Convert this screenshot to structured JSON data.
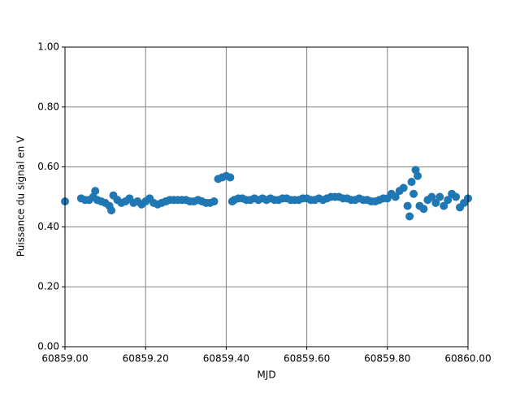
{
  "chart_data": {
    "type": "scatter",
    "xlabel": "MJD",
    "ylabel": "Puissance du signal en V",
    "color": "#1f77b4",
    "grid": true,
    "xlim": [
      60859.0,
      60860.0
    ],
    "xticks": [
      {
        "value": 60859.0,
        "label": "60859.00"
      },
      {
        "value": 60859.2,
        "label": "60859.20"
      },
      {
        "value": 60859.4,
        "label": "60859.40"
      },
      {
        "value": 60859.6,
        "label": "60859.60"
      },
      {
        "value": 60859.8,
        "label": "60859.80"
      },
      {
        "value": 60860.0,
        "label": "60860.00"
      }
    ],
    "ylim": [
      0,
      1
    ],
    "yticks": [
      {
        "value": 0,
        "label": "0.00"
      },
      {
        "value": 0.2,
        "label": "0.20"
      },
      {
        "value": 0.4,
        "label": "0.40"
      },
      {
        "value": 0.6,
        "label": "0.60"
      },
      {
        "value": 0.8,
        "label": "0.80"
      },
      {
        "value": 1,
        "label": "1.00"
      }
    ],
    "x": [
      60859.0,
      60859.04,
      60859.05,
      60859.06,
      60859.07,
      60859.075,
      60859.08,
      60859.09,
      60859.1,
      60859.11,
      60859.115,
      60859.12,
      60859.13,
      60859.14,
      60859.15,
      60859.16,
      60859.17,
      60859.18,
      60859.19,
      60859.2,
      60859.21,
      60859.22,
      60859.23,
      60859.24,
      60859.25,
      60859.26,
      60859.27,
      60859.28,
      60859.29,
      60859.3,
      60859.31,
      60859.32,
      60859.33,
      60859.34,
      60859.35,
      60859.36,
      60859.37,
      60859.38,
      60859.39,
      60859.4,
      60859.41,
      60859.415,
      60859.42,
      60859.43,
      60859.44,
      60859.45,
      60859.46,
      60859.47,
      60859.48,
      60859.49,
      60859.5,
      60859.51,
      60859.52,
      60859.53,
      60859.54,
      60859.55,
      60859.56,
      60859.57,
      60859.58,
      60859.59,
      60859.6,
      60859.61,
      60859.62,
      60859.63,
      60859.64,
      60859.65,
      60859.66,
      60859.67,
      60859.68,
      60859.69,
      60859.7,
      60859.71,
      60859.72,
      60859.73,
      60859.74,
      60859.75,
      60859.76,
      60859.77,
      60859.78,
      60859.79,
      60859.8,
      60859.81,
      60859.82,
      60859.83,
      60859.84,
      60859.85,
      60859.855,
      60859.86,
      60859.865,
      60859.87,
      60859.875,
      60859.88,
      60859.89,
      60859.9,
      60859.91,
      60859.92,
      60859.93,
      60859.94,
      60859.95,
      60859.96,
      60859.97,
      60859.98,
      60859.99,
      60860.0
    ],
    "values": [
      0.485,
      0.495,
      0.49,
      0.49,
      0.5,
      0.52,
      0.49,
      0.485,
      0.48,
      0.47,
      0.455,
      0.505,
      0.49,
      0.48,
      0.485,
      0.495,
      0.48,
      0.485,
      0.475,
      0.485,
      0.495,
      0.48,
      0.475,
      0.48,
      0.485,
      0.49,
      0.49,
      0.49,
      0.49,
      0.49,
      0.485,
      0.485,
      0.49,
      0.485,
      0.48,
      0.48,
      0.485,
      0.56,
      0.565,
      0.57,
      0.565,
      0.485,
      0.49,
      0.495,
      0.495,
      0.49,
      0.49,
      0.495,
      0.49,
      0.495,
      0.49,
      0.495,
      0.49,
      0.49,
      0.495,
      0.495,
      0.49,
      0.49,
      0.49,
      0.495,
      0.495,
      0.49,
      0.49,
      0.495,
      0.49,
      0.495,
      0.5,
      0.5,
      0.5,
      0.495,
      0.495,
      0.49,
      0.49,
      0.495,
      0.49,
      0.49,
      0.485,
      0.485,
      0.49,
      0.495,
      0.495,
      0.51,
      0.5,
      0.52,
      0.53,
      0.47,
      0.435,
      0.55,
      0.51,
      0.59,
      0.57,
      0.47,
      0.46,
      0.49,
      0.5,
      0.48,
      0.5,
      0.47,
      0.49,
      0.51,
      0.5,
      0.465,
      0.48,
      0.495
    ]
  }
}
